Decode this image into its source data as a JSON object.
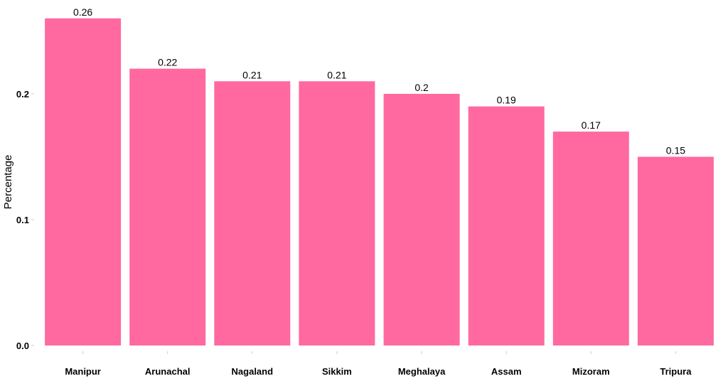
{
  "chart_data": {
    "type": "bar",
    "categories": [
      "Manipur",
      "Arunachal",
      "Nagaland",
      "Sikkim",
      "Meghalaya",
      "Assam",
      "Mizoram",
      "Tripura"
    ],
    "values": [
      0.26,
      0.22,
      0.21,
      0.21,
      0.2,
      0.19,
      0.17,
      0.15
    ],
    "data_labels": [
      "0.26",
      "0.22",
      "0.21",
      "0.21",
      "0.2",
      "0.19",
      "0.17",
      "0.15"
    ],
    "title": "",
    "xlabel": "",
    "ylabel": "Percentage",
    "ylim": [
      0,
      0.26
    ],
    "yticks": [
      0.0,
      0.1,
      0.2
    ],
    "ytick_labels": [
      "0.0",
      "0.1",
      "0.2"
    ],
    "grid": false,
    "legend": "none",
    "bar_color": "#ff69a0"
  }
}
